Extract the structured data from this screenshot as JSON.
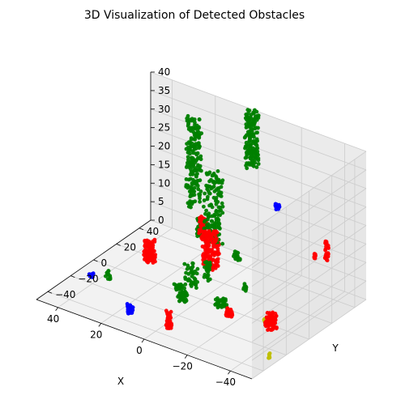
{
  "chart_data": {
    "type": "scatter",
    "projection": "3d",
    "title": "3D Visualization of Detected Obstacles",
    "xlabel": "X",
    "ylabel": "Y",
    "zlabel": "",
    "xlim": [
      -50,
      50
    ],
    "ylim": [
      -50,
      50
    ],
    "zlim": [
      0,
      40
    ],
    "x_ticks": [
      "−40",
      "−20",
      "0",
      "20",
      "40"
    ],
    "y_ticks": [
      "−40",
      "−20",
      "0",
      "20",
      "40"
    ],
    "z_ticks": [
      "0",
      "5",
      "10",
      "15",
      "20",
      "25",
      "30",
      "35",
      "40"
    ],
    "grid": true,
    "legend": "none",
    "colors": {
      "green": "#008000",
      "red": "#ff0000",
      "blue": "#0000ff",
      "yellow": "#bfbf00"
    },
    "clusters": [
      {
        "color": "green",
        "x": 2,
        "y": 48,
        "z_range": [
          25,
          40
        ],
        "radius": 3,
        "count": 160
      },
      {
        "color": "green",
        "x": 30,
        "y": 50,
        "z_range": [
          8,
          32
        ],
        "radius": 3.2,
        "count": 180
      },
      {
        "color": "green",
        "x": 5,
        "y": 20,
        "z_range": [
          10,
          29
        ],
        "radius": 4,
        "count": 150
      },
      {
        "color": "green",
        "x": 17,
        "y": 30,
        "z_range": [
          7,
          12
        ],
        "radius": 1,
        "count": 30
      },
      {
        "color": "green",
        "x": -8,
        "y": 16,
        "z_range": [
          9,
          11
        ],
        "radius": 1.5,
        "count": 20
      },
      {
        "color": "green",
        "x": -1,
        "y": 3,
        "z_range": [
          5,
          10
        ],
        "radius": 1.5,
        "count": 25
      },
      {
        "color": "green",
        "x": 9,
        "y": 8,
        "z_range": [
          0,
          6
        ],
        "radius": 3,
        "count": 40
      },
      {
        "color": "green",
        "x": -9,
        "y": 0,
        "z_range": [
          0,
          2
        ],
        "radius": 2.5,
        "count": 40
      },
      {
        "color": "green",
        "x": -16,
        "y": 8,
        "z_range": [
          4,
          6
        ],
        "radius": 0.6,
        "count": 10
      },
      {
        "color": "green",
        "x": 5,
        "y": -7,
        "z_range": [
          0,
          4
        ],
        "radius": 2,
        "count": 50
      },
      {
        "color": "green",
        "x": 11,
        "y": -1,
        "z_range": [
          0,
          2
        ],
        "radius": 1.2,
        "count": 12
      },
      {
        "color": "green",
        "x": 37,
        "y": -12,
        "z_range": [
          0,
          3
        ],
        "radius": 1.2,
        "count": 12
      },
      {
        "color": "red",
        "x": 4,
        "y": 16,
        "z_range": [
          4,
          14
        ],
        "radius": 3.5,
        "count": 150
      },
      {
        "color": "red",
        "x": 10,
        "y": 20,
        "z_range": [
          10,
          16
        ],
        "radius": 1.5,
        "count": 60
      },
      {
        "color": "red",
        "x": 32,
        "y": 15,
        "z_range": [
          0,
          6
        ],
        "radius": 2.5,
        "count": 120
      },
      {
        "color": "red",
        "x": -45,
        "y": 25,
        "z_range": [
          15,
          20
        ],
        "radius": 0.8,
        "count": 30
      },
      {
        "color": "red",
        "x": -33,
        "y": 37,
        "z_range": [
          10,
          12
        ],
        "radius": 0.5,
        "count": 10
      },
      {
        "color": "red",
        "x": -34,
        "y": -3,
        "z_range": [
          0,
          4
        ],
        "radius": 2.5,
        "count": 80
      },
      {
        "color": "red",
        "x": -16,
        "y": -6,
        "z_range": [
          0,
          2
        ],
        "radius": 1.5,
        "count": 40
      },
      {
        "color": "red",
        "x": -3,
        "y": -34,
        "z_range": [
          0,
          5
        ],
        "radius": 1.2,
        "count": 50
      },
      {
        "color": "blue",
        "x": -13,
        "y": 42,
        "z_range": [
          18,
          20
        ],
        "radius": 1,
        "count": 15
      },
      {
        "color": "blue",
        "x": 15,
        "y": -34,
        "z_range": [
          0,
          3
        ],
        "radius": 1.3,
        "count": 30
      },
      {
        "color": "blue",
        "x": 43,
        "y": -15,
        "z_range": [
          0,
          1
        ],
        "radius": 1,
        "count": 15
      },
      {
        "color": "yellow",
        "x": -30,
        "y": -1,
        "z_range": [
          0,
          2
        ],
        "radius": 0.4,
        "count": 8
      },
      {
        "color": "yellow",
        "x": -47,
        "y": -29,
        "z_range": [
          0,
          2
        ],
        "radius": 0.4,
        "count": 8
      }
    ]
  }
}
